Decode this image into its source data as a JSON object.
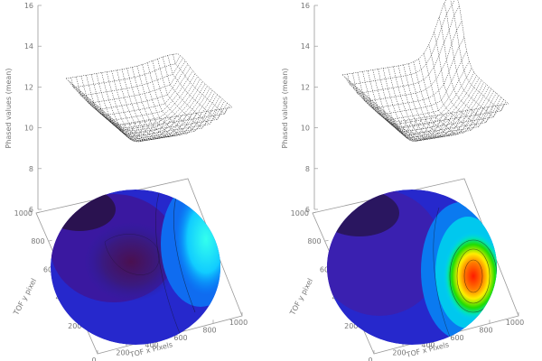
{
  "chart_data": [
    {
      "type": "surface",
      "panel": "left",
      "z_axis_label": "Phased values (mean)",
      "z_ticks": [
        "6",
        "8",
        "10",
        "12",
        "14",
        "16"
      ],
      "x_axis_label": "TOF x Pixels",
      "x_ticks": [
        "0",
        "200",
        "400",
        "600",
        "800",
        "1000"
      ],
      "y_axis_label": "TOF y pixel",
      "y_ticks": [
        "200",
        "400",
        "600",
        "800",
        "1000"
      ],
      "zlim": [
        6,
        16
      ],
      "surface": {
        "baseline": 9.5,
        "rim": 11.8,
        "peak": 12.2
      },
      "colormap": "rainbow",
      "max_level": 0.45
    },
    {
      "type": "surface",
      "panel": "right",
      "z_axis_label": "Phased values (mean)",
      "z_ticks": [
        "6",
        "8",
        "10",
        "12",
        "14",
        "16"
      ],
      "x_axis_label": "TOF x Pixels",
      "x_ticks": [
        "0",
        "200",
        "400",
        "600",
        "800",
        "1000"
      ],
      "y_axis_label": "TOF y pixel",
      "y_ticks": [
        "200",
        "400",
        "600",
        "800",
        "1000"
      ],
      "zlim": [
        6,
        16
      ],
      "surface": {
        "baseline": 9.5,
        "rim": 12.0,
        "peak": 15.6
      },
      "colormap": "rainbow",
      "max_level": 1.0
    }
  ]
}
